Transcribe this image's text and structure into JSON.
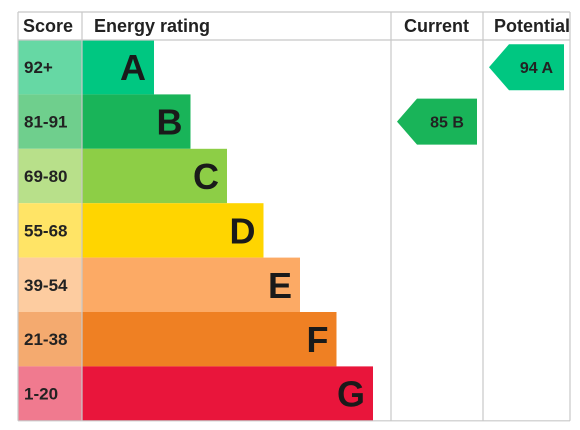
{
  "headers": {
    "score": "Score",
    "rating": "Energy rating",
    "current": "Current",
    "potential": "Potential"
  },
  "chart_data": {
    "type": "bar",
    "bands": [
      {
        "score": "92+",
        "letter": "A",
        "color": "#00c781",
        "score_bg": "#66d8a4",
        "text_color": "#1a1a1a"
      },
      {
        "score": "81-91",
        "letter": "B",
        "color": "#19b459",
        "score_bg": "#6fcf8d",
        "text_color": "#1a1a1a"
      },
      {
        "score": "69-80",
        "letter": "C",
        "color": "#8dce46",
        "score_bg": "#b8e08a",
        "text_color": "#1a1a1a"
      },
      {
        "score": "55-68",
        "letter": "D",
        "color": "#ffd500",
        "score_bg": "#ffe466",
        "text_color": "#1a1a1a"
      },
      {
        "score": "39-54",
        "letter": "E",
        "color": "#fcaa65",
        "score_bg": "#fdcca0",
        "text_color": "#1a1a1a"
      },
      {
        "score": "21-38",
        "letter": "F",
        "color": "#ef8023",
        "score_bg": "#f4aa6f",
        "text_color": "#1a1a1a"
      },
      {
        "score": "1-20",
        "letter": "G",
        "color": "#e9153b",
        "score_bg": "#f07a8f",
        "text_color": "#1a1a1a"
      }
    ],
    "current": {
      "value": 85,
      "letter": "B",
      "label": "85 B",
      "color": "#19b459"
    },
    "potential": {
      "value": 94,
      "letter": "A",
      "label": "94 A",
      "color": "#00c781"
    }
  }
}
